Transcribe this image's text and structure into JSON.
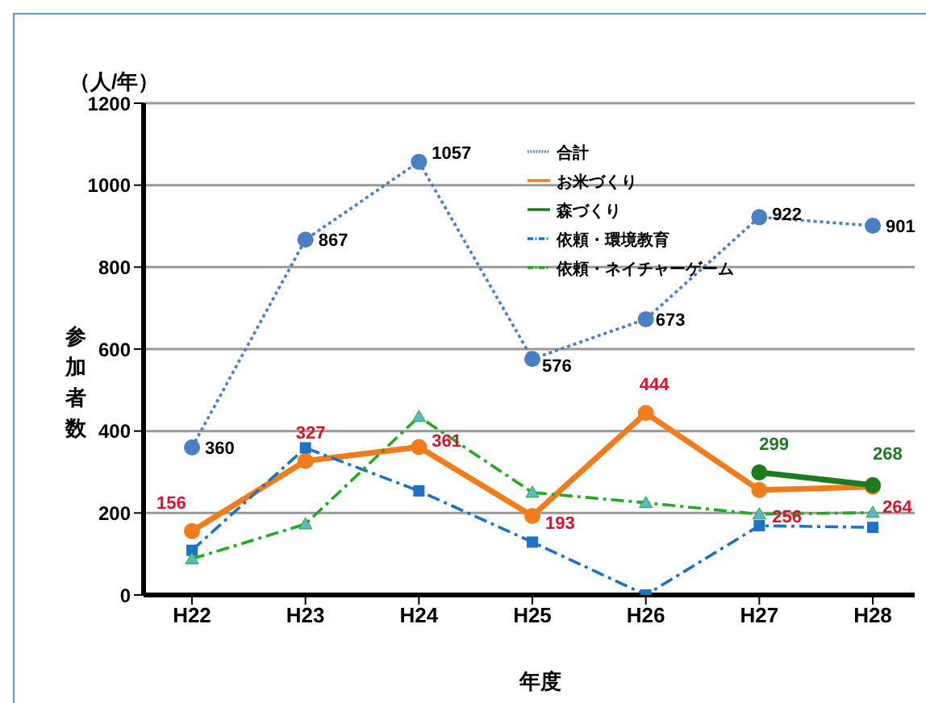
{
  "chart_data": {
    "type": "line",
    "xlabel": "年度",
    "ylabel": "参加者数",
    "annotations": [
      "（人/年）"
    ],
    "categories": [
      "H22",
      "H23",
      "H24",
      "H25",
      "H26",
      "H27",
      "H28"
    ],
    "ylim": [
      0,
      1200
    ],
    "yticks": [
      0,
      200,
      400,
      600,
      800,
      1000,
      1200
    ],
    "grid": "y",
    "legend": "top right",
    "series": [
      {
        "name": "合計",
        "color": "#4a7fc4",
        "marker": "circle",
        "line_style": "dotted",
        "values": [
          360,
          867,
          1057,
          576,
          673,
          922,
          901
        ],
        "value_labels": [
          "360",
          "867",
          "1057",
          "576",
          "673",
          "922",
          "901"
        ]
      },
      {
        "name": "お米づくり",
        "color": "#f07c1e",
        "marker": "circle",
        "line_style": "solid",
        "values": [
          156,
          327,
          361,
          193,
          444,
          256,
          264
        ],
        "value_labels": [
          "156",
          "327",
          "361",
          "193",
          "444",
          "256",
          "264"
        ]
      },
      {
        "name": "森づくり",
        "color": "#1e7a1e",
        "marker": "circle",
        "line_style": "solid",
        "values": [
          null,
          null,
          null,
          null,
          null,
          299,
          268
        ],
        "value_labels": [
          null,
          null,
          null,
          null,
          null,
          "299",
          "268"
        ]
      },
      {
        "name": "依頼・環境教育",
        "color": "#1a73c8",
        "marker": "square",
        "line_style": "dashed",
        "values": [
          109,
          359,
          254,
          129,
          0,
          169,
          165
        ]
      },
      {
        "name": "依頼・ネイチャーゲーム",
        "color": "#22aa22",
        "marker": "triangle",
        "line_style": "dashed",
        "values": [
          88,
          173,
          435,
          250,
          225,
          197,
          201
        ]
      }
    ]
  }
}
